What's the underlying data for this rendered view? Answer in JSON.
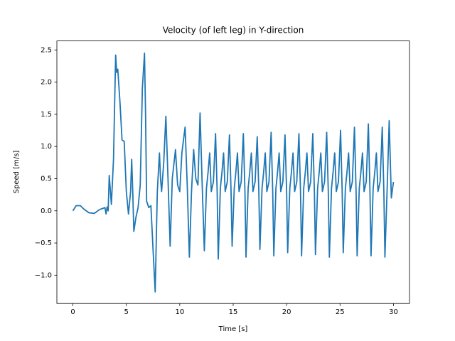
{
  "chart_data": {
    "type": "line",
    "title": "Velocity (of left leg) in Y-direction",
    "x_label": "Time [s]",
    "y_label": "Speed [m/s]",
    "x": [
      0,
      0.3,
      0.7,
      1,
      1.5,
      2,
      2.5,
      3,
      3.1,
      3.2,
      3.3,
      3.4,
      3.6,
      3.8,
      4.0,
      4.1,
      4.2,
      4.4,
      4.6,
      4.8,
      5.0,
      5.2,
      5.4,
      5.5,
      5.6,
      5.7,
      5.9,
      6.1,
      6.3,
      6.5,
      6.7,
      6.8,
      6.9,
      7.1,
      7.3,
      7.5,
      7.7,
      7.9,
      8.1,
      8.2,
      8.3,
      8.5,
      8.7,
      8.9,
      9.1,
      9.3,
      9.6,
      9.8,
      10.0,
      10.2,
      10.5,
      10.7,
      10.9,
      11.1,
      11.3,
      11.5,
      11.7,
      11.9,
      12.1,
      12.3,
      12.5,
      12.65,
      12.8,
      12.95,
      13.15,
      13.35,
      13.5,
      13.6,
      13.8,
      13.95,
      14.1,
      14.25,
      14.45,
      14.65,
      14.8,
      14.9,
      15.1,
      15.25,
      15.4,
      15.55,
      15.75,
      15.95,
      16.1,
      16.2,
      16.4,
      16.55,
      16.7,
      16.85,
      17.05,
      17.25,
      17.4,
      17.5,
      17.7,
      17.85,
      18.0,
      18.15,
      18.35,
      18.55,
      18.7,
      18.8,
      19.0,
      19.15,
      19.3,
      19.45,
      19.65,
      19.85,
      20.0,
      20.1,
      20.3,
      20.45,
      20.6,
      20.75,
      20.95,
      21.15,
      21.3,
      21.4,
      21.6,
      21.75,
      21.9,
      22.05,
      22.25,
      22.45,
      22.6,
      22.7,
      22.9,
      23.05,
      23.2,
      23.35,
      23.55,
      23.75,
      23.9,
      24.0,
      24.2,
      24.35,
      24.5,
      24.65,
      24.85,
      25.05,
      25.2,
      25.3,
      25.5,
      25.65,
      25.8,
      25.95,
      26.15,
      26.35,
      26.5,
      26.6,
      26.8,
      26.95,
      27.1,
      27.25,
      27.45,
      27.65,
      27.8,
      27.9,
      28.1,
      28.25,
      28.4,
      28.55,
      28.75,
      28.95,
      29.1,
      29.2,
      29.4,
      29.6,
      29.8,
      30
    ],
    "series": [
      {
        "color": "#1f77b4",
        "values": [
          0,
          0.08,
          0.08,
          0.03,
          -0.03,
          -0.04,
          0.02,
          0.05,
          -0.05,
          0.06,
          0,
          0.55,
          0.1,
          0.8,
          2.42,
          2.15,
          2.2,
          1.7,
          1.1,
          1.08,
          0.3,
          -0.05,
          0.3,
          0.8,
          0.3,
          -0.32,
          -0.1,
          0.05,
          0.4,
          1.9,
          2.45,
          1.5,
          0.15,
          0.05,
          0.08,
          -0.6,
          -1.26,
          0.3,
          0.9,
          0.5,
          0.3,
          0.75,
          1.47,
          0.5,
          -0.55,
          0.5,
          0.95,
          0.4,
          0.3,
          0.9,
          1.3,
          0.4,
          -0.72,
          0.3,
          0.95,
          0.5,
          0.4,
          1.52,
          0.4,
          -0.62,
          0.35,
          0.6,
          0.9,
          0.3,
          0.45,
          1.2,
          0.3,
          -0.75,
          0.35,
          0.6,
          0.9,
          0.3,
          0.45,
          1.18,
          0.3,
          -0.55,
          0.35,
          0.6,
          0.9,
          0.3,
          0.45,
          1.2,
          0.3,
          -0.72,
          0.35,
          0.6,
          0.9,
          0.3,
          0.45,
          1.15,
          0.3,
          -0.6,
          0.35,
          0.6,
          0.9,
          0.3,
          0.45,
          1.22,
          0.3,
          -0.7,
          0.35,
          0.6,
          0.9,
          0.3,
          0.45,
          1.18,
          0.3,
          -0.65,
          0.35,
          0.6,
          0.9,
          0.3,
          0.45,
          1.2,
          0.3,
          -0.7,
          0.35,
          0.6,
          0.9,
          0.3,
          0.45,
          1.2,
          0.3,
          -0.68,
          0.35,
          0.6,
          0.9,
          0.3,
          0.45,
          1.22,
          0.3,
          -0.72,
          0.35,
          0.6,
          0.9,
          0.3,
          0.45,
          1.25,
          0.3,
          -0.65,
          0.35,
          0.6,
          0.9,
          0.3,
          0.45,
          1.3,
          0.3,
          -0.7,
          0.35,
          0.6,
          0.9,
          0.3,
          0.45,
          1.35,
          0.3,
          -0.7,
          0.35,
          0.6,
          0.9,
          0.3,
          0.45,
          1.3,
          0.3,
          -0.72,
          0.3,
          1.4,
          0.2,
          0.45
        ]
      }
    ],
    "xlim": [
      -1.5,
      31.5
    ],
    "ylim": [
      -1.44,
      2.64
    ],
    "xticks": [
      0,
      5,
      10,
      15,
      20,
      25,
      30
    ],
    "yticks": [
      {
        "value": -1,
        "label": "−1.0"
      },
      {
        "value": -0.5,
        "label": "−0.5"
      },
      {
        "value": 0,
        "label": "0.0"
      },
      0.5,
      {
        "value": 1,
        "label": "1.0"
      },
      1.5,
      {
        "value": 2,
        "label": "2.0"
      },
      2.5
    ],
    "grid": false
  }
}
